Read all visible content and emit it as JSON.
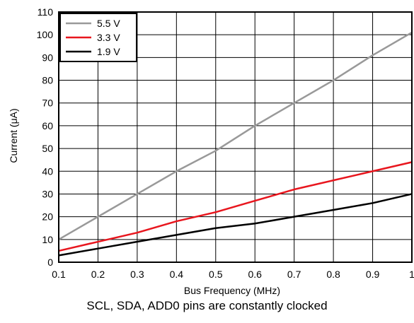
{
  "chart_data": {
    "type": "line",
    "title": "",
    "caption": "SCL, SDA, ADD0 pins are constantly clocked",
    "xlabel": "Bus Frequency (MHz)",
    "ylabel": "Current (μA)",
    "xlim": [
      0.1,
      1
    ],
    "ylim": [
      0,
      110
    ],
    "xticks": [
      0.1,
      0.2,
      0.3,
      0.4,
      0.5,
      0.6,
      0.7,
      0.8,
      0.9,
      1
    ],
    "xtick_labels": [
      "0.1",
      "0.2",
      "0.3",
      "0.4",
      "0.5",
      "0.6",
      "0.7",
      "0.8",
      "0.9",
      "1"
    ],
    "yticks": [
      0,
      10,
      20,
      30,
      40,
      50,
      60,
      70,
      80,
      90,
      100,
      110
    ],
    "ytick_labels": [
      "0",
      "10",
      "20",
      "30",
      "40",
      "50",
      "60",
      "70",
      "80",
      "90",
      "100",
      "110"
    ],
    "grid": true,
    "legend_position": "top-left",
    "x": [
      0.1,
      0.2,
      0.3,
      0.4,
      0.5,
      0.6,
      0.7,
      0.8,
      0.9,
      1.0
    ],
    "series": [
      {
        "name": "5.5 V",
        "color": "#999999",
        "values": [
          10,
          20,
          30,
          40,
          49,
          60,
          70,
          80,
          91,
          101
        ]
      },
      {
        "name": "3.3 V",
        "color": "#e8161e",
        "values": [
          5,
          9,
          13,
          18,
          22,
          27,
          32,
          36,
          40,
          44
        ]
      },
      {
        "name": "1.9 V",
        "color": "#000000",
        "values": [
          3,
          6,
          9,
          12,
          15,
          17,
          20,
          23,
          26,
          30
        ]
      }
    ]
  }
}
